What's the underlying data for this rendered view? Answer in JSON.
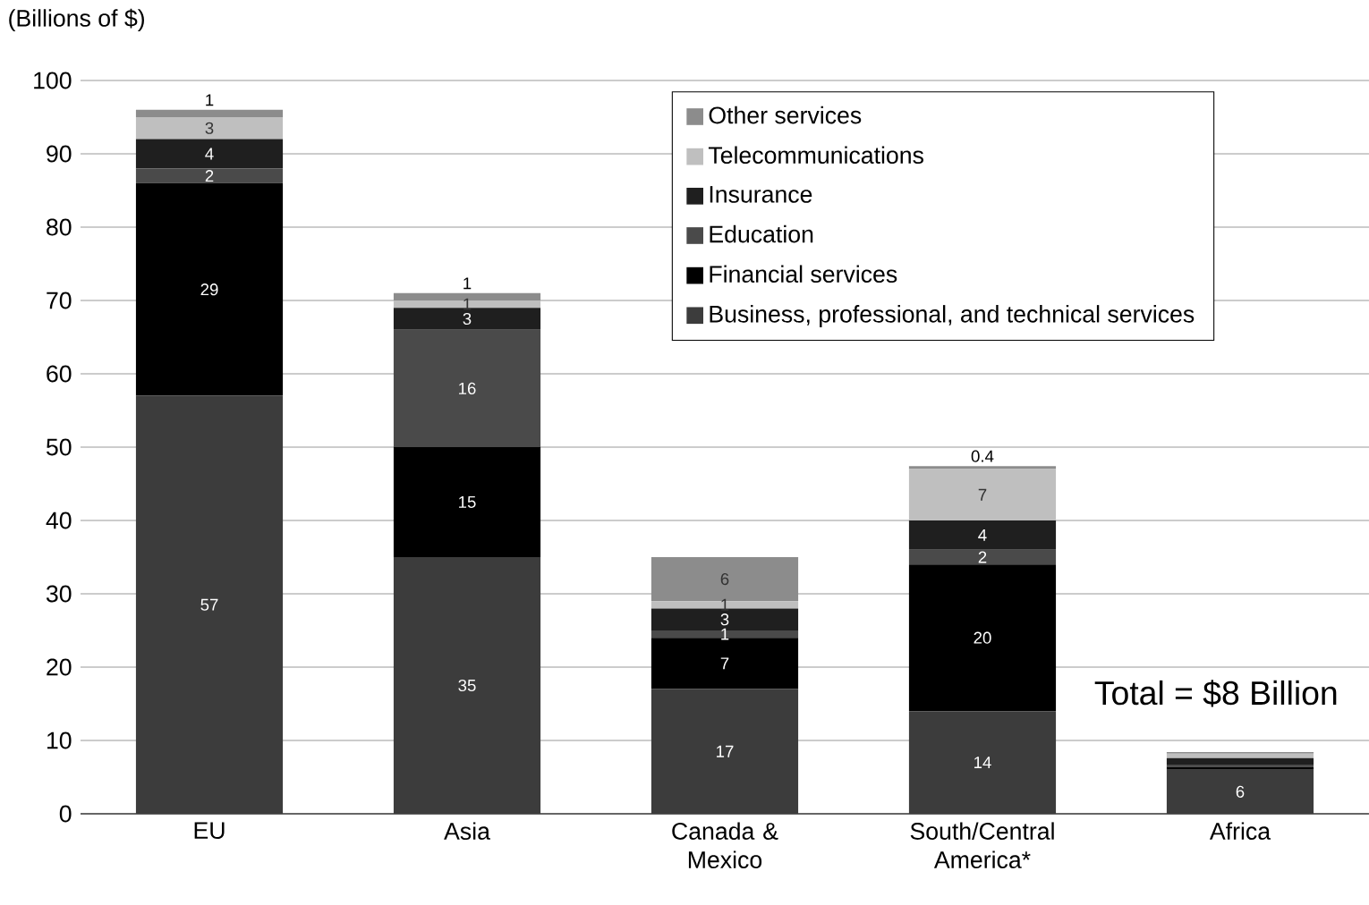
{
  "chart_data": {
    "type": "bar",
    "stacked": true,
    "ylabel": "(Billions of $)",
    "categories": [
      "EU",
      "Asia",
      "Canada & Mexico",
      "South/Central America*",
      "Africa"
    ],
    "series": [
      {
        "name": "Business, professional, and technical services",
        "color": "#3c3c3c",
        "values": [
          57,
          35,
          17,
          14,
          6
        ],
        "value_labels": [
          "57",
          "35",
          "17",
          "14",
          "6"
        ]
      },
      {
        "name": "Financial services",
        "color": "#000000",
        "values": [
          29,
          15,
          7,
          20,
          0.4
        ],
        "value_labels": [
          "29",
          "15",
          "7",
          "20",
          null
        ]
      },
      {
        "name": "Education",
        "color": "#4a4a4a",
        "values": [
          2,
          16,
          1,
          2,
          0.3
        ],
        "value_labels": [
          "2",
          "16",
          "1",
          "2",
          null
        ]
      },
      {
        "name": "Insurance",
        "color": "#1f1f1f",
        "values": [
          4,
          3,
          3,
          4,
          0.9
        ],
        "value_labels": [
          "4",
          "3",
          "3",
          "4",
          null
        ]
      },
      {
        "name": "Telecommunications",
        "color": "#bfbfbf",
        "values": [
          3,
          1,
          1,
          7,
          0.6
        ],
        "value_labels": [
          "3",
          "1",
          "1",
          "7",
          null
        ]
      },
      {
        "name": "Other services",
        "color": "#8c8c8c",
        "values": [
          1,
          1,
          6,
          0.4,
          0.2
        ],
        "value_labels": [
          "1",
          "1",
          "6",
          "0.4",
          null
        ]
      }
    ],
    "ylim": [
      0,
      100
    ],
    "yticks": [
      0,
      10,
      20,
      30,
      40,
      50,
      60,
      70,
      80,
      90,
      100
    ],
    "grid": "y",
    "legend": "top right",
    "annotations": [
      {
        "text": "Total = $8 Billion",
        "y": 8
      }
    ]
  }
}
